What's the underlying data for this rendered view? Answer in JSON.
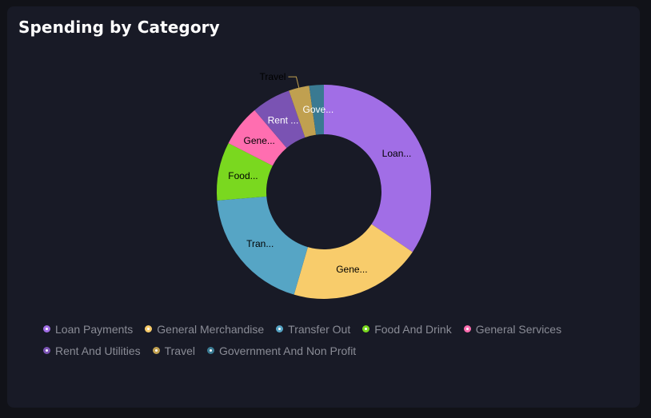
{
  "card": {
    "title": "Spending by Category"
  },
  "chart_data": {
    "type": "pie",
    "donut": true,
    "title": "Spending by Category",
    "legend_position": "bottom",
    "categories": [
      "Loan Payments",
      "General Merchandise",
      "Transfer Out",
      "Food And Drink",
      "General Services",
      "Rent And Utilities",
      "Travel",
      "Government And Non Profit"
    ],
    "slice_labels": [
      "Loan...",
      "Gene...",
      "Tran...",
      "Food...",
      "Gene...",
      "Rent ...",
      "Travel",
      "Gove..."
    ],
    "values": [
      34.5,
      20.0,
      19.2,
      8.8,
      6.3,
      5.9,
      3.1,
      2.2
    ],
    "colors": [
      "#a16ee6",
      "#f8cc6b",
      "#56a5c5",
      "#7ad81f",
      "#ff6eb0",
      "#7a53b3",
      "#c0a050",
      "#3a7a92"
    ]
  }
}
